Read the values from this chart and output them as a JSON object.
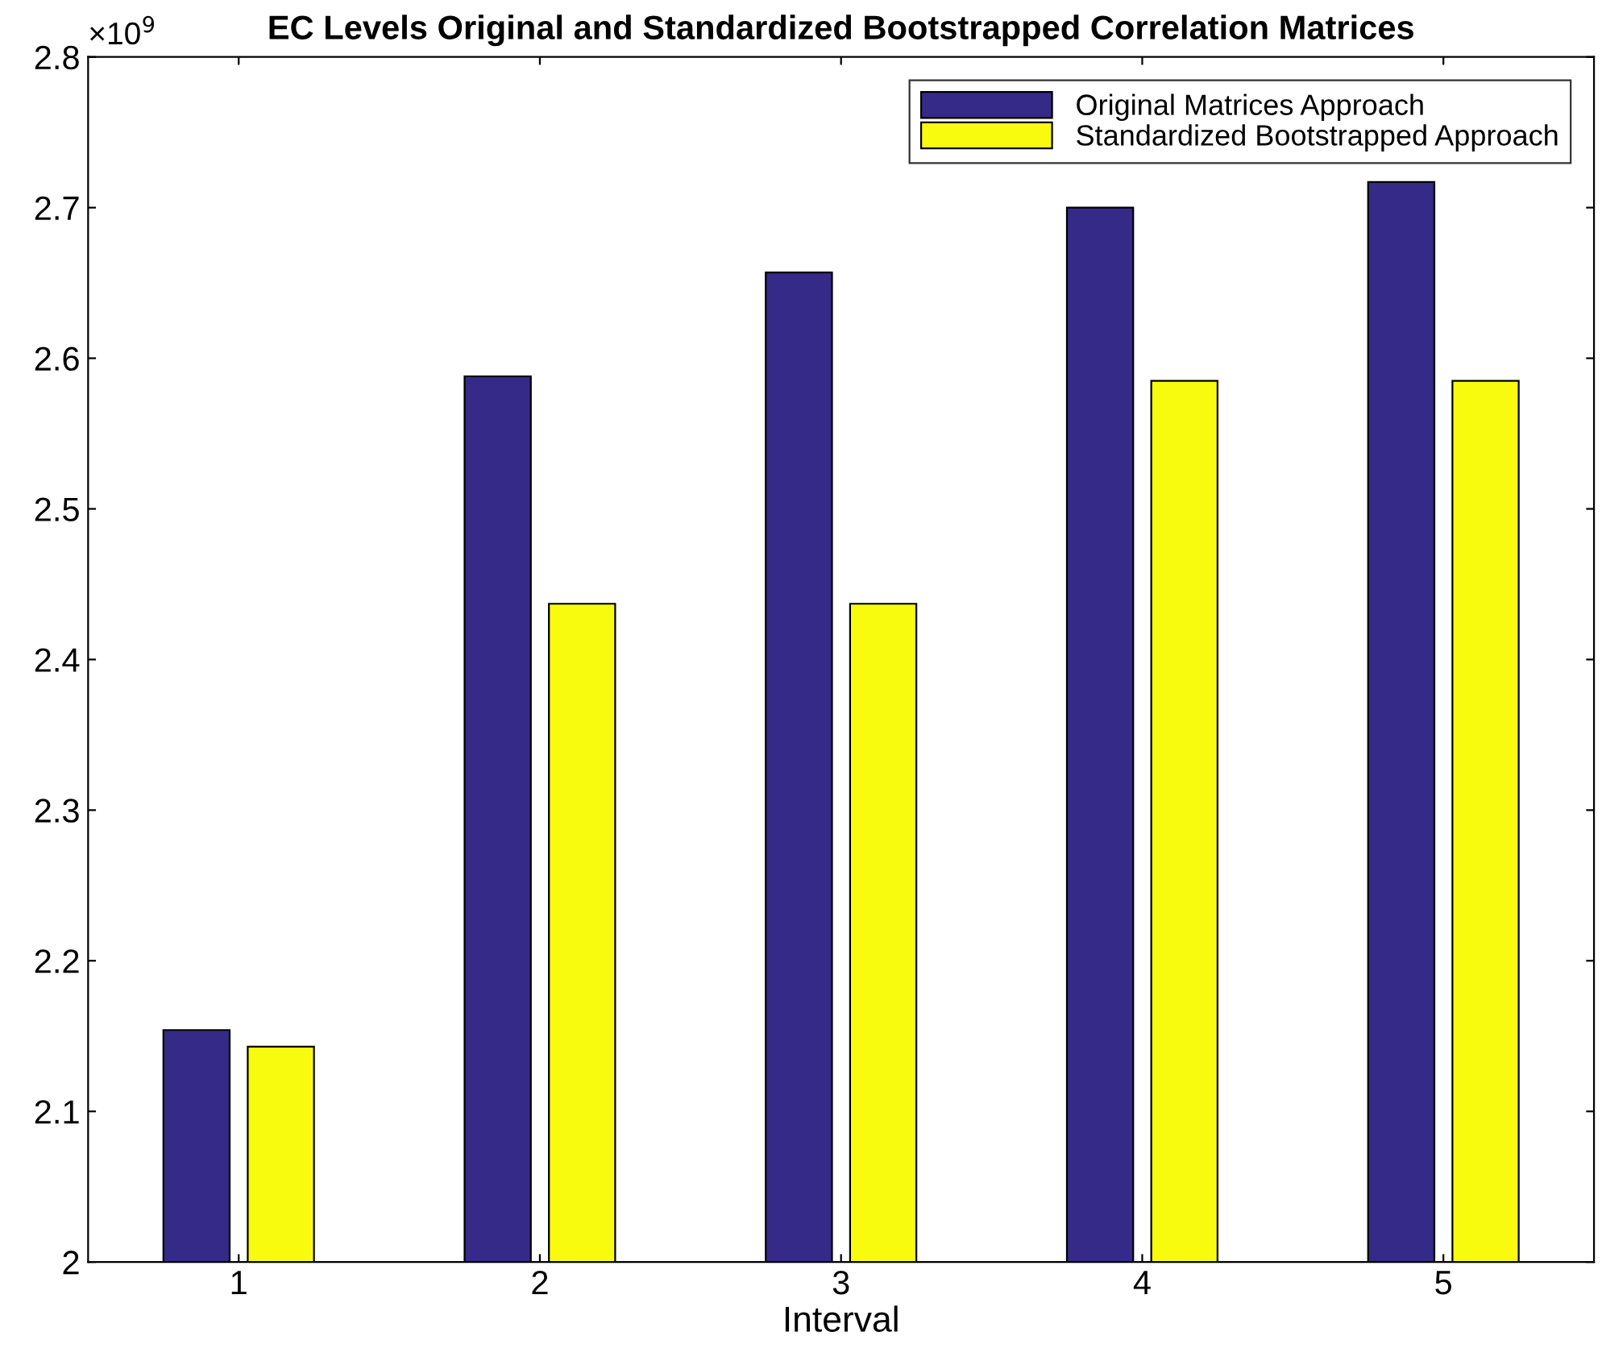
{
  "chart_data": {
    "type": "bar",
    "title": "EC Levels Original and Standardized Bootstrapped Correlation Matrices",
    "xlabel": "Interval",
    "categories": [
      "1",
      "2",
      "3",
      "4",
      "5"
    ],
    "series": [
      {
        "name": "Original Matrices Approach",
        "color": "#352a87",
        "values": [
          2.154,
          2.588,
          2.657,
          2.7,
          2.717
        ]
      },
      {
        "name": "Standardized Bootstrapped Approach",
        "color": "#f9fb0e",
        "values": [
          2.143,
          2.437,
          2.437,
          2.585,
          2.585
        ]
      }
    ],
    "ylim": [
      2,
      2.8
    ],
    "yticks": [
      2,
      2.1,
      2.2,
      2.3,
      2.4,
      2.5,
      2.6,
      2.7,
      2.8
    ],
    "annotations": [
      "×10$^{9}$"
    ],
    "grid": false,
    "legend": "top right"
  }
}
